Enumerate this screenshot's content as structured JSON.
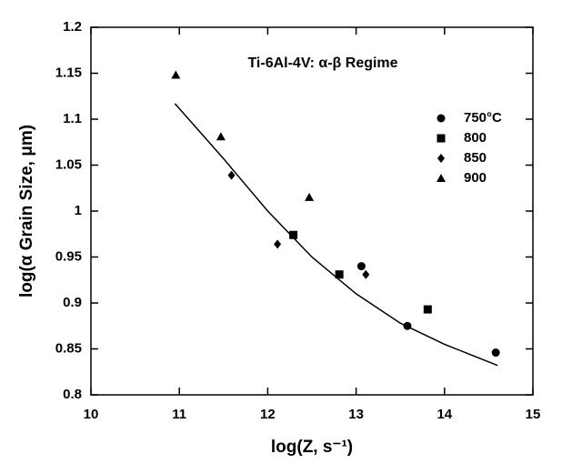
{
  "chart_data": {
    "type": "scatter",
    "title": "Ti-6Al-4V: α-β Regime",
    "x_label": "log(Z, s⁻¹)",
    "y_label": "log(α Grain Size, μm)",
    "xlim": [
      10,
      15
    ],
    "xticks": [
      10,
      11,
      12,
      13,
      14,
      15
    ],
    "ylim": [
      0.8,
      1.2
    ],
    "yticks": [
      0.8,
      0.85,
      0.9,
      0.95,
      1,
      1.05,
      1.1,
      1.15,
      1.2
    ],
    "series": [
      {
        "name": "750°C",
        "marker": "circle",
        "color": "#000000",
        "x": [
          13.06,
          13.58,
          14.58
        ],
        "values": [
          0.94,
          0.875,
          0.846
        ]
      },
      {
        "name": "800",
        "marker": "square",
        "color": "#000000",
        "x": [
          12.29,
          12.81,
          13.81
        ],
        "values": [
          0.974,
          0.931,
          0.893
        ]
      },
      {
        "name": "850",
        "marker": "diamond",
        "color": "#000000",
        "x": [
          11.59,
          12.11,
          13.11
        ],
        "values": [
          1.039,
          0.964,
          0.931
        ]
      },
      {
        "name": "900",
        "marker": "triangle",
        "color": "#000000",
        "x": [
          10.96,
          11.47,
          12.47
        ],
        "values": [
          1.148,
          1.081,
          1.015
        ]
      }
    ],
    "fit": {
      "color": "#000000",
      "x": [
        10.95,
        11.5,
        12,
        12.5,
        13,
        13.5,
        14,
        14.6
      ],
      "values": [
        1.117,
        1.057,
        1.0,
        0.95,
        0.91,
        0.878,
        0.855,
        0.832
      ]
    }
  }
}
